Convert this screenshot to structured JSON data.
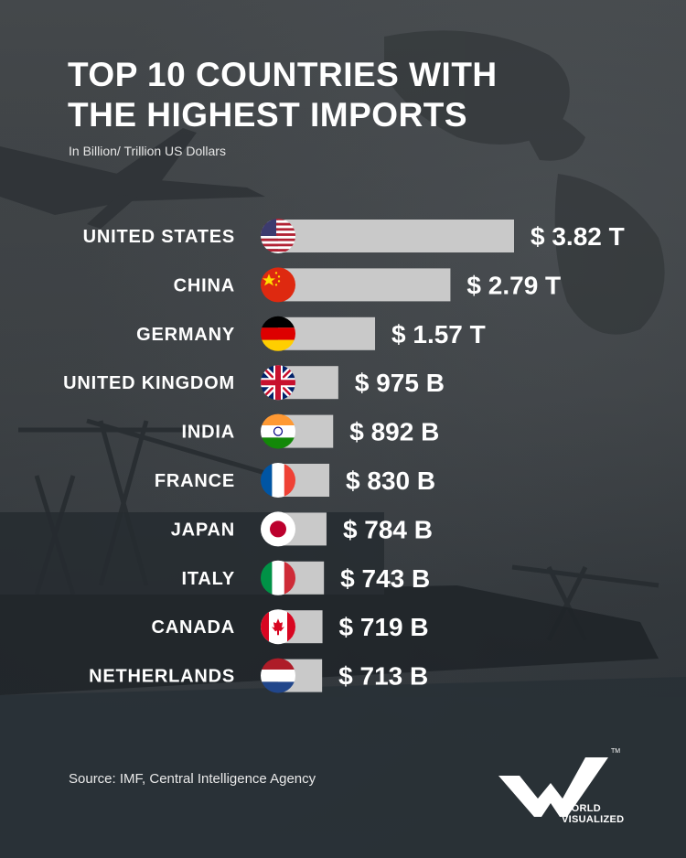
{
  "header": {
    "title_line1": "TOP 10 COUNTRIES WITH",
    "title_line2": "THE HIGHEST IMPORTS",
    "subtitle": "In Billion/ Trillion US Dollars"
  },
  "chart_data": {
    "type": "bar",
    "orientation": "horizontal",
    "categories": [
      "UNITED STATES",
      "CHINA",
      "GERMANY",
      "UNITED KINGDOM",
      "INDIA",
      "FRANCE",
      "JAPAN",
      "ITALY",
      "CANADA",
      "NETHERLANDS"
    ],
    "values": [
      3820,
      2790,
      1570,
      975,
      892,
      830,
      784,
      743,
      719,
      713
    ],
    "unit": "billion USD",
    "value_labels": [
      "$ 3.82 T",
      "$ 2.79 T",
      "$ 1.57 T",
      "$ 975 B",
      "$ 892 B",
      "$ 830 B",
      "$ 784 B",
      "$ 743 B",
      "$ 719 B",
      "$ 713 B"
    ],
    "flags": [
      "us-flag-icon",
      "china-flag-icon",
      "germany-flag-icon",
      "uk-flag-icon",
      "india-flag-icon",
      "france-flag-icon",
      "japan-flag-icon",
      "italy-flag-icon",
      "canada-flag-icon",
      "netherlands-flag-icon"
    ],
    "bar_color": "#c9c9c9",
    "grid": false,
    "legend": "none"
  },
  "footer": {
    "source": "Source: IMF, Central Intelligence Agency",
    "logo_line1": "WORLD",
    "logo_line2": "VISUALIZED",
    "logo_tm": "TM"
  }
}
